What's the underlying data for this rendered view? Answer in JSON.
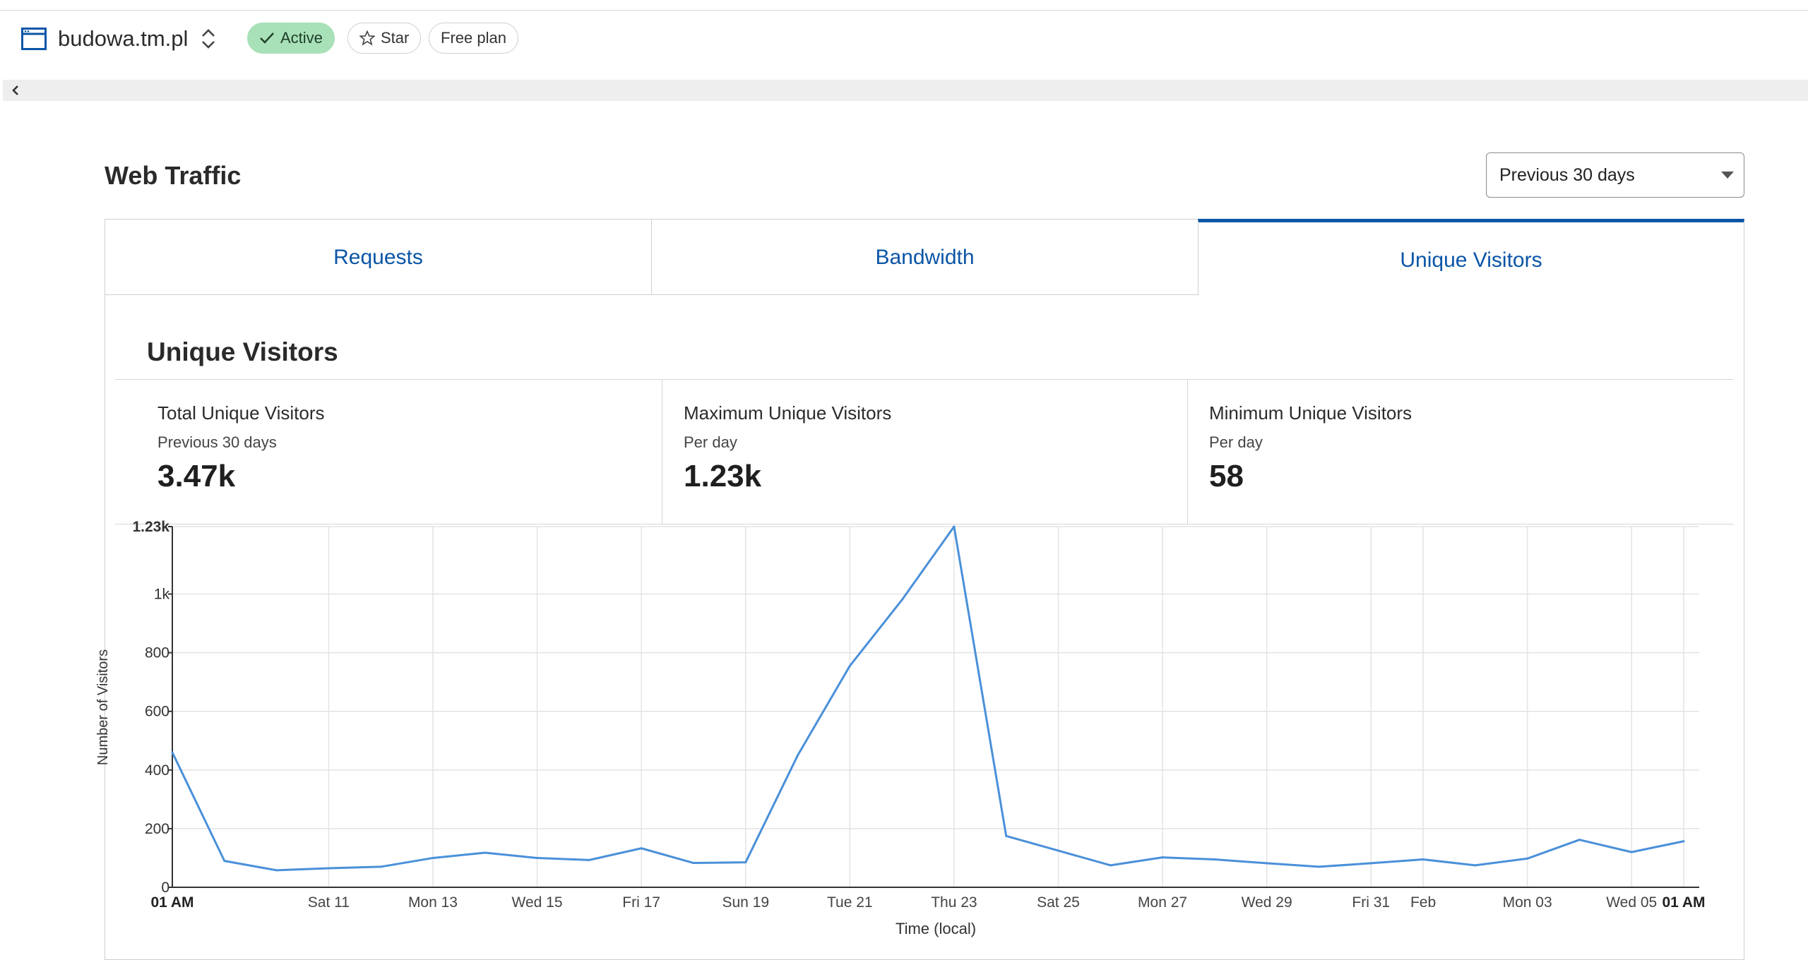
{
  "header": {
    "site_name": "budowa.tm.pl",
    "status_label": "Active",
    "star_label": "Star",
    "plan_label": "Free plan"
  },
  "page": {
    "title": "Web Traffic",
    "range": "Previous 30 days"
  },
  "tabs": [
    {
      "label": "Requests",
      "selected": false
    },
    {
      "label": "Bandwidth",
      "selected": false
    },
    {
      "label": "Unique Visitors",
      "selected": true
    }
  ],
  "section": {
    "title": "Unique Visitors"
  },
  "stats": [
    {
      "label": "Total Unique Visitors",
      "sub": "Previous 30 days",
      "value": "3.47k"
    },
    {
      "label": "Maximum Unique Visitors",
      "sub": "Per day",
      "value": "1.23k"
    },
    {
      "label": "Minimum Unique Visitors",
      "sub": "Per day",
      "value": "58"
    }
  ],
  "colors": {
    "accent": "#0b55a6",
    "line": "#4a90d9",
    "active_pill": "#a8e0b8"
  },
  "chart_data": {
    "type": "line",
    "xlabel": "Time (local)",
    "ylabel": "Number of Visitors",
    "ylim": [
      0,
      1230
    ],
    "yticks": [
      {
        "value": 0,
        "label": "0"
      },
      {
        "value": 200,
        "label": "200"
      },
      {
        "value": 400,
        "label": "400"
      },
      {
        "value": 600,
        "label": "600"
      },
      {
        "value": 800,
        "label": "800"
      },
      {
        "value": 1000,
        "label": "1k"
      },
      {
        "value": 1230,
        "label": "1.23k"
      }
    ],
    "xticks": [
      {
        "index": 0,
        "label": "01 AM",
        "bold": true
      },
      {
        "index": 3,
        "label": "Sat 11",
        "bold": false
      },
      {
        "index": 5,
        "label": "Mon 13",
        "bold": false
      },
      {
        "index": 7,
        "label": "Wed 15",
        "bold": false
      },
      {
        "index": 9,
        "label": "Fri 17",
        "bold": false
      },
      {
        "index": 11,
        "label": "Sun 19",
        "bold": false
      },
      {
        "index": 13,
        "label": "Tue 21",
        "bold": false
      },
      {
        "index": 15,
        "label": "Thu 23",
        "bold": false
      },
      {
        "index": 17,
        "label": "Sat 25",
        "bold": false
      },
      {
        "index": 19,
        "label": "Mon 27",
        "bold": false
      },
      {
        "index": 21,
        "label": "Wed 29",
        "bold": false
      },
      {
        "index": 23,
        "label": "Fri 31",
        "bold": false
      },
      {
        "index": 24,
        "label": "Feb",
        "bold": false
      },
      {
        "index": 26,
        "label": "Mon 03",
        "bold": false
      },
      {
        "index": 28,
        "label": "Wed 05",
        "bold": false
      },
      {
        "index": 29,
        "label": "01 AM",
        "bold": true
      }
    ],
    "series": [
      {
        "values": [
          460,
          90,
          58,
          65,
          70,
          100,
          118,
          100,
          93,
          133,
          83,
          85,
          450,
          755,
          980,
          1230,
          175,
          125,
          75,
          102,
          95,
          82,
          70,
          82,
          95,
          75,
          98,
          162,
          120,
          157
        ]
      }
    ],
    "grid": true
  }
}
